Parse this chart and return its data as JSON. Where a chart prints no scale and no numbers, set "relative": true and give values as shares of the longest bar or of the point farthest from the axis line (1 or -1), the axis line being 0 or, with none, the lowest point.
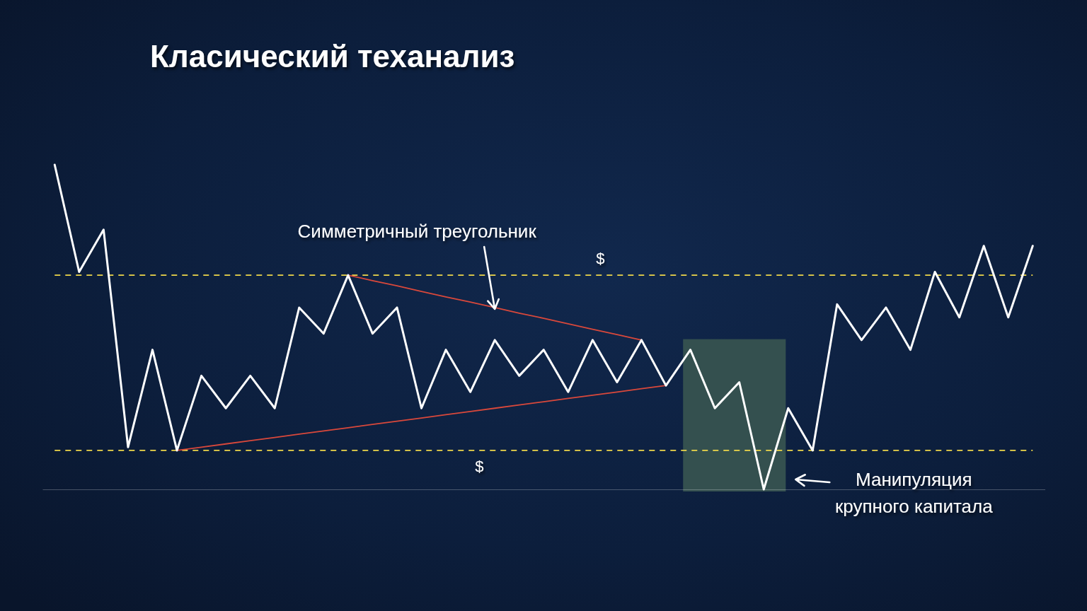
{
  "chart_data": {
    "type": "line",
    "title": "Класический теханализ",
    "relative": true,
    "categories": [
      null,
      null,
      null,
      null,
      null,
      null,
      null,
      null,
      null,
      null,
      null,
      null,
      null,
      null,
      null,
      null,
      null,
      null,
      null,
      null,
      null,
      null,
      null,
      null,
      null,
      null,
      null,
      null,
      null,
      null,
      null,
      null,
      null,
      null,
      null,
      null,
      null,
      null,
      null,
      null,
      null
    ],
    "series": [
      {
        "color": "#ffffff",
        "values": [
          1.0,
          0.67,
          0.8,
          0.13,
          0.43,
          0.12,
          0.35,
          0.25,
          0.35,
          0.25,
          0.56,
          0.48,
          0.66,
          0.48,
          0.56,
          0.25,
          0.43,
          0.3,
          0.46,
          0.35,
          0.43,
          0.3,
          0.46,
          0.33,
          0.46,
          0.32,
          0.43,
          0.25,
          0.33,
          0.0,
          0.25,
          0.12,
          0.57,
          0.46,
          0.56,
          0.43,
          0.67,
          0.53,
          0.75,
          0.53,
          0.75
        ]
      },
      {
        "color": "#d9483b",
        "values": [
          null,
          null,
          null,
          null,
          null,
          null,
          null,
          null,
          null,
          null,
          null,
          null,
          0.66,
          0.643,
          0.627,
          0.61,
          0.593,
          0.577,
          0.56,
          0.543,
          0.527,
          0.51,
          0.493,
          0.477,
          0.46,
          null,
          null,
          null,
          null,
          null,
          null,
          null,
          null,
          null,
          null,
          null,
          null,
          null,
          null,
          null,
          null
        ]
      },
      {
        "color": "#d9483b",
        "values": [
          null,
          null,
          null,
          null,
          null,
          0.12,
          0.13,
          0.14,
          0.15,
          0.16,
          0.17,
          0.18,
          0.19,
          0.2,
          0.21,
          0.22,
          0.23,
          0.24,
          0.25,
          0.26,
          0.27,
          0.28,
          0.29,
          0.3,
          0.31,
          0.32,
          null,
          null,
          null,
          null,
          null,
          null,
          null,
          null,
          null,
          null,
          null,
          null,
          null,
          null,
          null
        ]
      }
    ],
    "ref_lines": [
      {
        "axis": "y",
        "value": 0.66,
        "label": "$",
        "color": "#f0d84a",
        "line_style": "dashed"
      },
      {
        "axis": "y",
        "value": 0.12,
        "label": "$",
        "color": "#f0d84a",
        "line_style": "dashed"
      }
    ],
    "annotations": [
      "Симметричный треугольник",
      "Манипуляция\nкрупного капитала"
    ]
  }
}
